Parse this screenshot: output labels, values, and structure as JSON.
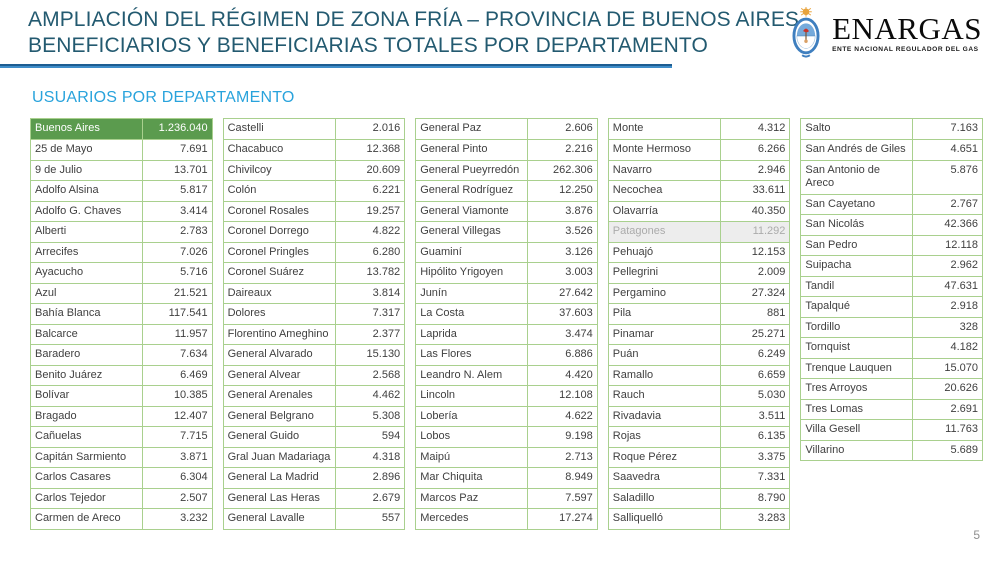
{
  "slide": {
    "title_line1": "AMPLIACIÓN DEL RÉGIMEN DE ZONA FRÍA – PROVINCIA DE BUENOS AIRES",
    "title_line2": "BENEFICIARIOS Y BENEFICIARIAS TOTALES POR DEPARTAMENTO",
    "section_heading": "USUARIOS POR DEPARTAMENTO",
    "page_number": "5"
  },
  "logo": {
    "name": "ENARGAS",
    "tagline": "ENTE NACIONAL REGULADOR DEL GAS"
  },
  "colors": {
    "title_color": "#235A70",
    "subtitle_color": "#29A3DC",
    "header_green": "#5B9B4E",
    "border_green": "#A9D08E",
    "cell_text": "#404040",
    "dim_bg": "#EDEDED",
    "dim_text": "#ABABAB",
    "page_num_color": "#8F8F8F",
    "underline_blue": "#2E74B5"
  },
  "tables": [
    {
      "rows": [
        {
          "name": "Buenos Aires",
          "value": "1.236.040",
          "variant": "header"
        },
        {
          "name": "25 de Mayo",
          "value": "7.691"
        },
        {
          "name": "9 de Julio",
          "value": "13.701"
        },
        {
          "name": "Adolfo Alsina",
          "value": "5.817"
        },
        {
          "name": "Adolfo G. Chaves",
          "value": "3.414"
        },
        {
          "name": "Alberti",
          "value": "2.783"
        },
        {
          "name": "Arrecifes",
          "value": "7.026"
        },
        {
          "name": "Ayacucho",
          "value": "5.716"
        },
        {
          "name": "Azul",
          "value": "21.521"
        },
        {
          "name": "Bahía Blanca",
          "value": "117.541"
        },
        {
          "name": "Balcarce",
          "value": "11.957"
        },
        {
          "name": "Baradero",
          "value": "7.634"
        },
        {
          "name": "Benito Juárez",
          "value": "6.469"
        },
        {
          "name": "Bolívar",
          "value": "10.385"
        },
        {
          "name": "Bragado",
          "value": "12.407"
        },
        {
          "name": "Cañuelas",
          "value": "7.715"
        },
        {
          "name": "Capitán Sarmiento",
          "value": "3.871"
        },
        {
          "name": "Carlos Casares",
          "value": "6.304"
        },
        {
          "name": "Carlos Tejedor",
          "value": "2.507"
        },
        {
          "name": "Carmen de Areco",
          "value": "3.232"
        }
      ]
    },
    {
      "rows": [
        {
          "name": "Castelli",
          "value": "2.016"
        },
        {
          "name": "Chacabuco",
          "value": "12.368"
        },
        {
          "name": "Chivilcoy",
          "value": "20.609"
        },
        {
          "name": "Colón",
          "value": "6.221"
        },
        {
          "name": "Coronel Rosales",
          "value": "19.257"
        },
        {
          "name": "Coronel Dorrego",
          "value": "4.822"
        },
        {
          "name": "Coronel Pringles",
          "value": "6.280"
        },
        {
          "name": "Coronel Suárez",
          "value": "13.782"
        },
        {
          "name": "Daireaux",
          "value": "3.814"
        },
        {
          "name": "Dolores",
          "value": "7.317"
        },
        {
          "name": "Florentino Ameghino",
          "value": "2.377"
        },
        {
          "name": "General Alvarado",
          "value": "15.130"
        },
        {
          "name": "General Alvear",
          "value": "2.568"
        },
        {
          "name": "General Arenales",
          "value": "4.462"
        },
        {
          "name": "General Belgrano",
          "value": "5.308"
        },
        {
          "name": "General Guido",
          "value": "594"
        },
        {
          "name": "Gral Juan Madariaga",
          "value": "4.318"
        },
        {
          "name": "General La Madrid",
          "value": "2.896"
        },
        {
          "name": "General Las Heras",
          "value": "2.679"
        },
        {
          "name": "General Lavalle",
          "value": "557"
        }
      ]
    },
    {
      "rows": [
        {
          "name": "General Paz",
          "value": "2.606"
        },
        {
          "name": "General Pinto",
          "value": "2.216"
        },
        {
          "name": "General Pueyrredón",
          "value": "262.306"
        },
        {
          "name": "General Rodríguez",
          "value": "12.250"
        },
        {
          "name": "General Viamonte",
          "value": "3.876"
        },
        {
          "name": "General Villegas",
          "value": "3.526"
        },
        {
          "name": "Guaminí",
          "value": "3.126"
        },
        {
          "name": "Hipólito Yrigoyen",
          "value": "3.003"
        },
        {
          "name": "Junín",
          "value": "27.642"
        },
        {
          "name": "La Costa",
          "value": "37.603"
        },
        {
          "name": "Laprida",
          "value": "3.474"
        },
        {
          "name": "Las Flores",
          "value": "6.886"
        },
        {
          "name": "Leandro N. Alem",
          "value": "4.420"
        },
        {
          "name": "Lincoln",
          "value": "12.108"
        },
        {
          "name": "Lobería",
          "value": "4.622"
        },
        {
          "name": "Lobos",
          "value": "9.198"
        },
        {
          "name": "Maipú",
          "value": "2.713"
        },
        {
          "name": "Mar Chiquita",
          "value": "8.949"
        },
        {
          "name": "Marcos Paz",
          "value": "7.597"
        },
        {
          "name": "Mercedes",
          "value": "17.274"
        }
      ]
    },
    {
      "rows": [
        {
          "name": "Monte",
          "value": "4.312"
        },
        {
          "name": "Monte Hermoso",
          "value": "6.266"
        },
        {
          "name": "Navarro",
          "value": "2.946"
        },
        {
          "name": "Necochea",
          "value": "33.611"
        },
        {
          "name": "Olavarría",
          "value": "40.350"
        },
        {
          "name": "Patagones",
          "value": "11.292",
          "variant": "dimmed"
        },
        {
          "name": "Pehuajó",
          "value": "12.153"
        },
        {
          "name": "Pellegrini",
          "value": "2.009"
        },
        {
          "name": "Pergamino",
          "value": "27.324"
        },
        {
          "name": "Pila",
          "value": "881"
        },
        {
          "name": "Pinamar",
          "value": "25.271"
        },
        {
          "name": "Puán",
          "value": "6.249"
        },
        {
          "name": "Ramallo",
          "value": "6.659"
        },
        {
          "name": "Rauch",
          "value": "5.030"
        },
        {
          "name": "Rivadavia",
          "value": "3.511"
        },
        {
          "name": "Rojas",
          "value": "6.135"
        },
        {
          "name": "Roque Pérez",
          "value": "3.375"
        },
        {
          "name": "Saavedra",
          "value": "7.331"
        },
        {
          "name": "Saladillo",
          "value": "8.790"
        },
        {
          "name": "Salliquelló",
          "value": "3.283"
        }
      ]
    },
    {
      "rows": [
        {
          "name": "Salto",
          "value": "7.163"
        },
        {
          "name": "San Andrés de Giles",
          "value": "4.651"
        },
        {
          "name": "San Antonio de Areco",
          "value": "5.876"
        },
        {
          "name": "San Cayetano",
          "value": "2.767"
        },
        {
          "name": "San Nicolás",
          "value": "42.366"
        },
        {
          "name": "San Pedro",
          "value": "12.118"
        },
        {
          "name": "Suipacha",
          "value": "2.962"
        },
        {
          "name": "Tandil",
          "value": "47.631"
        },
        {
          "name": "Tapalqué",
          "value": "2.918"
        },
        {
          "name": "Tordillo",
          "value": "328"
        },
        {
          "name": "Tornquist",
          "value": "4.182"
        },
        {
          "name": "Trenque Lauquen",
          "value": "15.070"
        },
        {
          "name": "Tres Arroyos",
          "value": "20.626"
        },
        {
          "name": "Tres Lomas",
          "value": "2.691"
        },
        {
          "name": "Villa Gesell",
          "value": "11.763"
        },
        {
          "name": "Villarino",
          "value": "5.689"
        }
      ]
    }
  ]
}
